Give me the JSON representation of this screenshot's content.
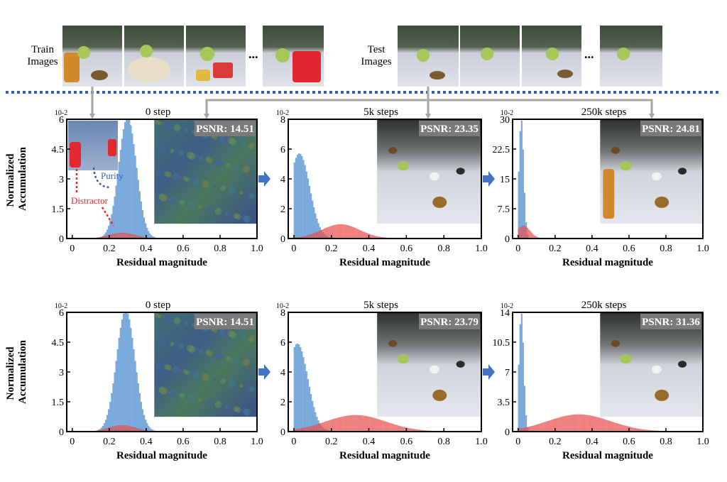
{
  "top_row": {
    "train_label": [
      "Train",
      "Images"
    ],
    "test_label": [
      "Test",
      "Images"
    ],
    "ellipsis": "..."
  },
  "colors": {
    "blue_bars": "#6fa6dc",
    "red_bars": "#f05a5a",
    "divider": "#3a5fae",
    "arrow_gray": "#a6a6a6",
    "arrow_blue": "#4472c4",
    "psnr_box": "#7a7a7a",
    "distractor_text": "#e3292c",
    "purity_text": "#3a5fae"
  },
  "chart_data": [
    {
      "type": "bar",
      "row": 1,
      "title": "0 step",
      "psnr": "PSNR: 14.51",
      "ylabel": "Normalized Accumulation",
      "xlabel": "Residual magnitude",
      "exponent": "10-2",
      "yticks": [
        "0",
        "1.5",
        "3",
        "4.5",
        "6"
      ],
      "ymax": 6,
      "xticks": [
        "0",
        "0.2",
        "0.4",
        "0.6",
        "0.8",
        "1.0"
      ],
      "annotations": [
        "Purity",
        "Distractor"
      ],
      "series": [
        {
          "kind": "blue",
          "center": 0.3,
          "width": 0.048,
          "peak": 6.1,
          "start": 0.05,
          "end": 0.62
        },
        {
          "kind": "red",
          "center": 0.27,
          "width": 0.07,
          "peak": 0.28,
          "start": 0.05,
          "end": 0.5
        }
      ]
    },
    {
      "type": "bar",
      "row": 1,
      "title": "5k steps",
      "psnr": "PSNR: 23.35",
      "xlabel": "Residual magnitude",
      "exponent": "10-2",
      "yticks": [
        "0",
        "2",
        "4",
        "6",
        "8"
      ],
      "ymax": 8,
      "xticks": [
        "0",
        "0.2",
        "0.4",
        "0.6",
        "0.8",
        "1.0"
      ],
      "series": [
        {
          "kind": "blue",
          "center": 0.03,
          "width": 0.055,
          "peak": 5.7,
          "start": 0.0,
          "end": 0.32
        },
        {
          "kind": "red",
          "center": 0.25,
          "width": 0.1,
          "peak": 0.95,
          "start": 0.0,
          "end": 0.65
        }
      ]
    },
    {
      "type": "bar",
      "row": 1,
      "title": "250k steps",
      "psnr": "PSNR: 24.81",
      "xlabel": "Residual magnitude",
      "exponent": "10-2",
      "yticks": [
        "0",
        "7.5",
        "15",
        "22.5",
        "30"
      ],
      "ymax": 30,
      "xticks": [
        "0",
        "0.2",
        "0.4",
        "0.6",
        "0.8",
        "1.0"
      ],
      "series": [
        {
          "kind": "blue",
          "center": 0.018,
          "width": 0.013,
          "peak": 30,
          "start": 0.0,
          "end": 0.12
        },
        {
          "kind": "red",
          "center": 0.03,
          "width": 0.035,
          "peak": 3.2,
          "start": 0.0,
          "end": 0.18
        }
      ]
    },
    {
      "type": "bar",
      "row": 2,
      "title": "0 step",
      "psnr": "PSNR: 14.51",
      "ylabel": "Normalized Accumulation",
      "xlabel": "Residual magnitude",
      "exponent": "10-2",
      "yticks": [
        "0",
        "1.5",
        "3",
        "4.5",
        "6"
      ],
      "ymax": 6,
      "xticks": [
        "0",
        "0.2",
        "0.4",
        "0.6",
        "0.8",
        "1.0"
      ],
      "series": [
        {
          "kind": "blue",
          "center": 0.29,
          "width": 0.05,
          "peak": 6.1,
          "start": 0.05,
          "end": 0.6
        },
        {
          "kind": "red",
          "center": 0.27,
          "width": 0.07,
          "peak": 0.32,
          "start": 0.05,
          "end": 0.5
        }
      ]
    },
    {
      "type": "bar",
      "row": 2,
      "title": "5k steps",
      "psnr": "PSNR: 23.79",
      "xlabel": "Residual magnitude",
      "exponent": "10-2",
      "yticks": [
        "0",
        "2",
        "4",
        "6",
        "8"
      ],
      "ymax": 8,
      "xticks": [
        "0",
        "0.2",
        "0.4",
        "0.6",
        "0.8",
        "1.0"
      ],
      "series": [
        {
          "kind": "blue",
          "center": 0.02,
          "width": 0.055,
          "peak": 5.9,
          "start": 0.0,
          "end": 0.32
        },
        {
          "kind": "red",
          "center": 0.33,
          "width": 0.16,
          "peak": 1.1,
          "start": 0.0,
          "end": 0.75
        }
      ]
    },
    {
      "type": "bar",
      "row": 2,
      "title": "250k steps",
      "psnr": "PSNR: 31.36",
      "xlabel": "Residual magnitude",
      "exponent": "10-2",
      "yticks": [
        "0",
        "3.5",
        "7",
        "10.5",
        "14"
      ],
      "ymax": 14,
      "xticks": [
        "0",
        "0.2",
        "0.4",
        "0.6",
        "0.8",
        "1.0"
      ],
      "series": [
        {
          "kind": "blue",
          "center": 0.018,
          "width": 0.013,
          "peak": 14,
          "start": 0.0,
          "end": 0.1
        },
        {
          "kind": "red",
          "center": 0.33,
          "width": 0.17,
          "peak": 2.0,
          "start": 0.0,
          "end": 0.85
        }
      ]
    }
  ]
}
